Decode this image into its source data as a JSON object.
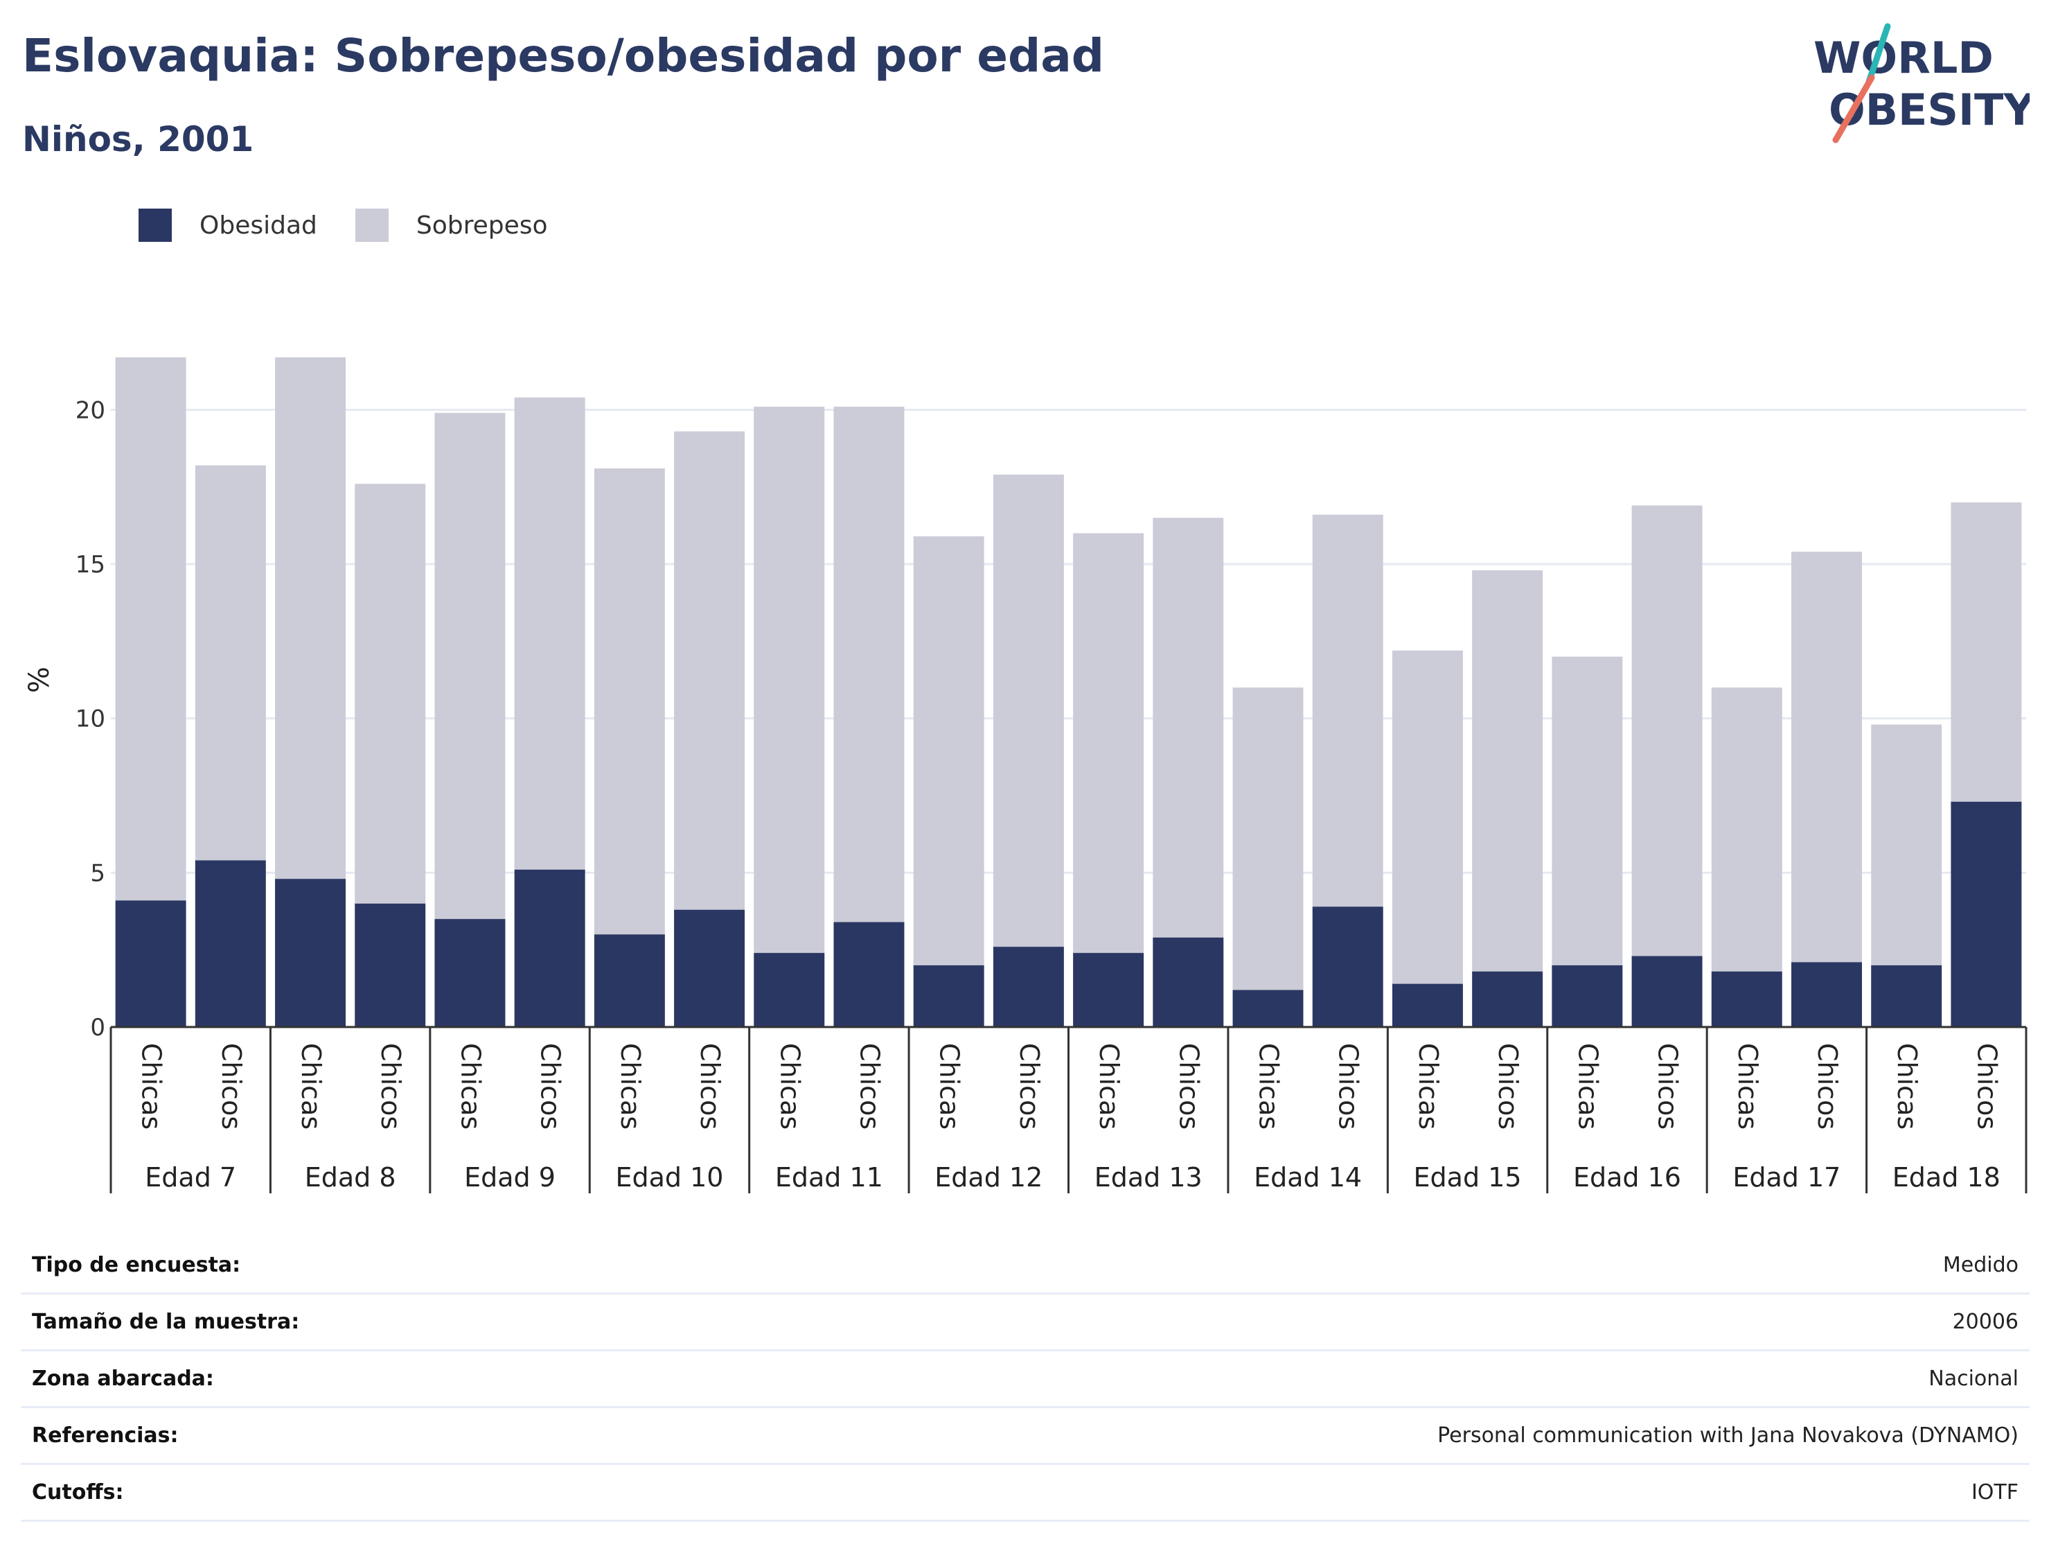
{
  "header": {
    "title": "Eslovaquia: Sobrepeso/obesidad por edad",
    "subtitle": "Niños, 2001"
  },
  "logo": {
    "line1": "WORLD",
    "line2": "OBESITY",
    "colors": {
      "navy": "#2b3a63",
      "teal": "#2bb5b5",
      "coral": "#e8705f"
    }
  },
  "colors": {
    "obesity": "#2b3763",
    "overweight": "#cbccd8",
    "grid": "#e6e9f2",
    "axis": "#333333"
  },
  "chart_data": {
    "type": "bar",
    "stacked": true,
    "ylabel": "%",
    "ylim": [
      0,
      22.5
    ],
    "yticks": [
      0,
      5,
      10,
      15,
      20
    ],
    "legend": [
      "Obesidad",
      "Sobrepeso"
    ],
    "groups": [
      "Edad 7",
      "Edad 8",
      "Edad 9",
      "Edad 10",
      "Edad 11",
      "Edad 12",
      "Edad 13",
      "Edad 14",
      "Edad 15",
      "Edad 16",
      "Edad 17",
      "Edad 18"
    ],
    "subcategories": [
      "Chicas",
      "Chicos"
    ],
    "series": [
      {
        "name": "Obesidad",
        "values": [
          4.1,
          5.4,
          4.8,
          4.0,
          3.5,
          5.1,
          3.0,
          3.8,
          2.4,
          3.4,
          2.0,
          2.6,
          2.4,
          2.9,
          1.2,
          3.9,
          1.4,
          1.8,
          2.0,
          2.3,
          1.8,
          2.1,
          2.0,
          7.3
        ]
      },
      {
        "name": "Sobrepeso",
        "values": [
          17.6,
          12.8,
          16.9,
          13.6,
          16.4,
          15.3,
          15.1,
          15.5,
          17.7,
          16.7,
          13.9,
          15.3,
          13.6,
          13.6,
          9.8,
          12.7,
          10.8,
          13.0,
          10.0,
          14.6,
          9.2,
          13.3,
          7.8,
          9.7
        ]
      }
    ]
  },
  "meta": [
    {
      "label": "Tipo de encuesta:",
      "value": "Medido"
    },
    {
      "label": "Tamaño de la muestra:",
      "value": "20006"
    },
    {
      "label": "Zona abarcada:",
      "value": "Nacional"
    },
    {
      "label": "Referencias:",
      "value": "Personal communication with Jana Novakova (DYNAMO)"
    },
    {
      "label": "Cutoffs:",
      "value": "IOTF"
    }
  ]
}
